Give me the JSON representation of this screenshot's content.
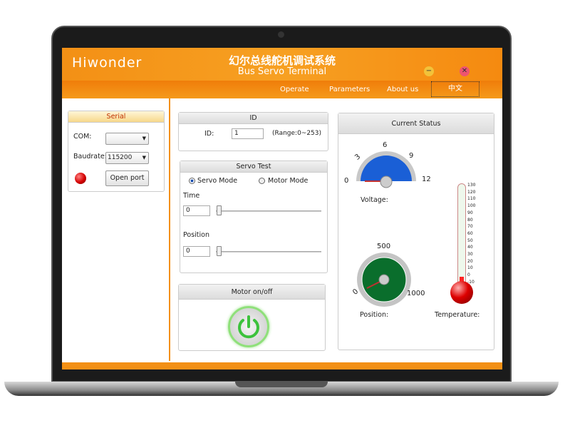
{
  "app": {
    "logo": "Hiwonder",
    "title_cn": "幻尔总线舵机调试系统",
    "title_en": "Bus Servo Terminal",
    "minimize_icon": "minimize-icon",
    "close_icon": "close-icon"
  },
  "nav": {
    "items": [
      "Operate",
      "Parameters",
      "About us"
    ],
    "language": "中文"
  },
  "serial": {
    "title": "Serial",
    "com_label": "COM:",
    "com_value": "",
    "baud_label": "Baudrate:",
    "baud_value": "115200",
    "open_label": "Open port",
    "status_color": "#d40000"
  },
  "id_panel": {
    "title": "ID",
    "id_label": "ID:",
    "id_value": "1",
    "range": "(Range:0~253)"
  },
  "servo_test": {
    "title": "Servo Test",
    "servo_mode": "Servo Mode",
    "motor_mode": "Motor Mode",
    "selected": "Servo Mode",
    "time_label": "Time",
    "time_value": "0",
    "position_label": "Position",
    "position_value": "0"
  },
  "motor": {
    "title": "Motor on/off",
    "power_icon": "power-icon"
  },
  "status": {
    "title": "Current Status",
    "voltage": {
      "label": "Voltage:",
      "ticks": [
        "0",
        "3",
        "6",
        "9",
        "12"
      ],
      "value": 0,
      "color": "#1a5fd6"
    },
    "position": {
      "label": "Position:",
      "ticks": [
        "0",
        "500",
        "1000"
      ],
      "value": 0,
      "color": "#0a6e2c"
    },
    "temperature": {
      "label": "Temperature:",
      "ticks": [
        "130",
        "120",
        "110",
        "100",
        "90",
        "80",
        "70",
        "60",
        "50",
        "40",
        "30",
        "20",
        "10",
        "0",
        "-10"
      ],
      "value": 0
    }
  }
}
